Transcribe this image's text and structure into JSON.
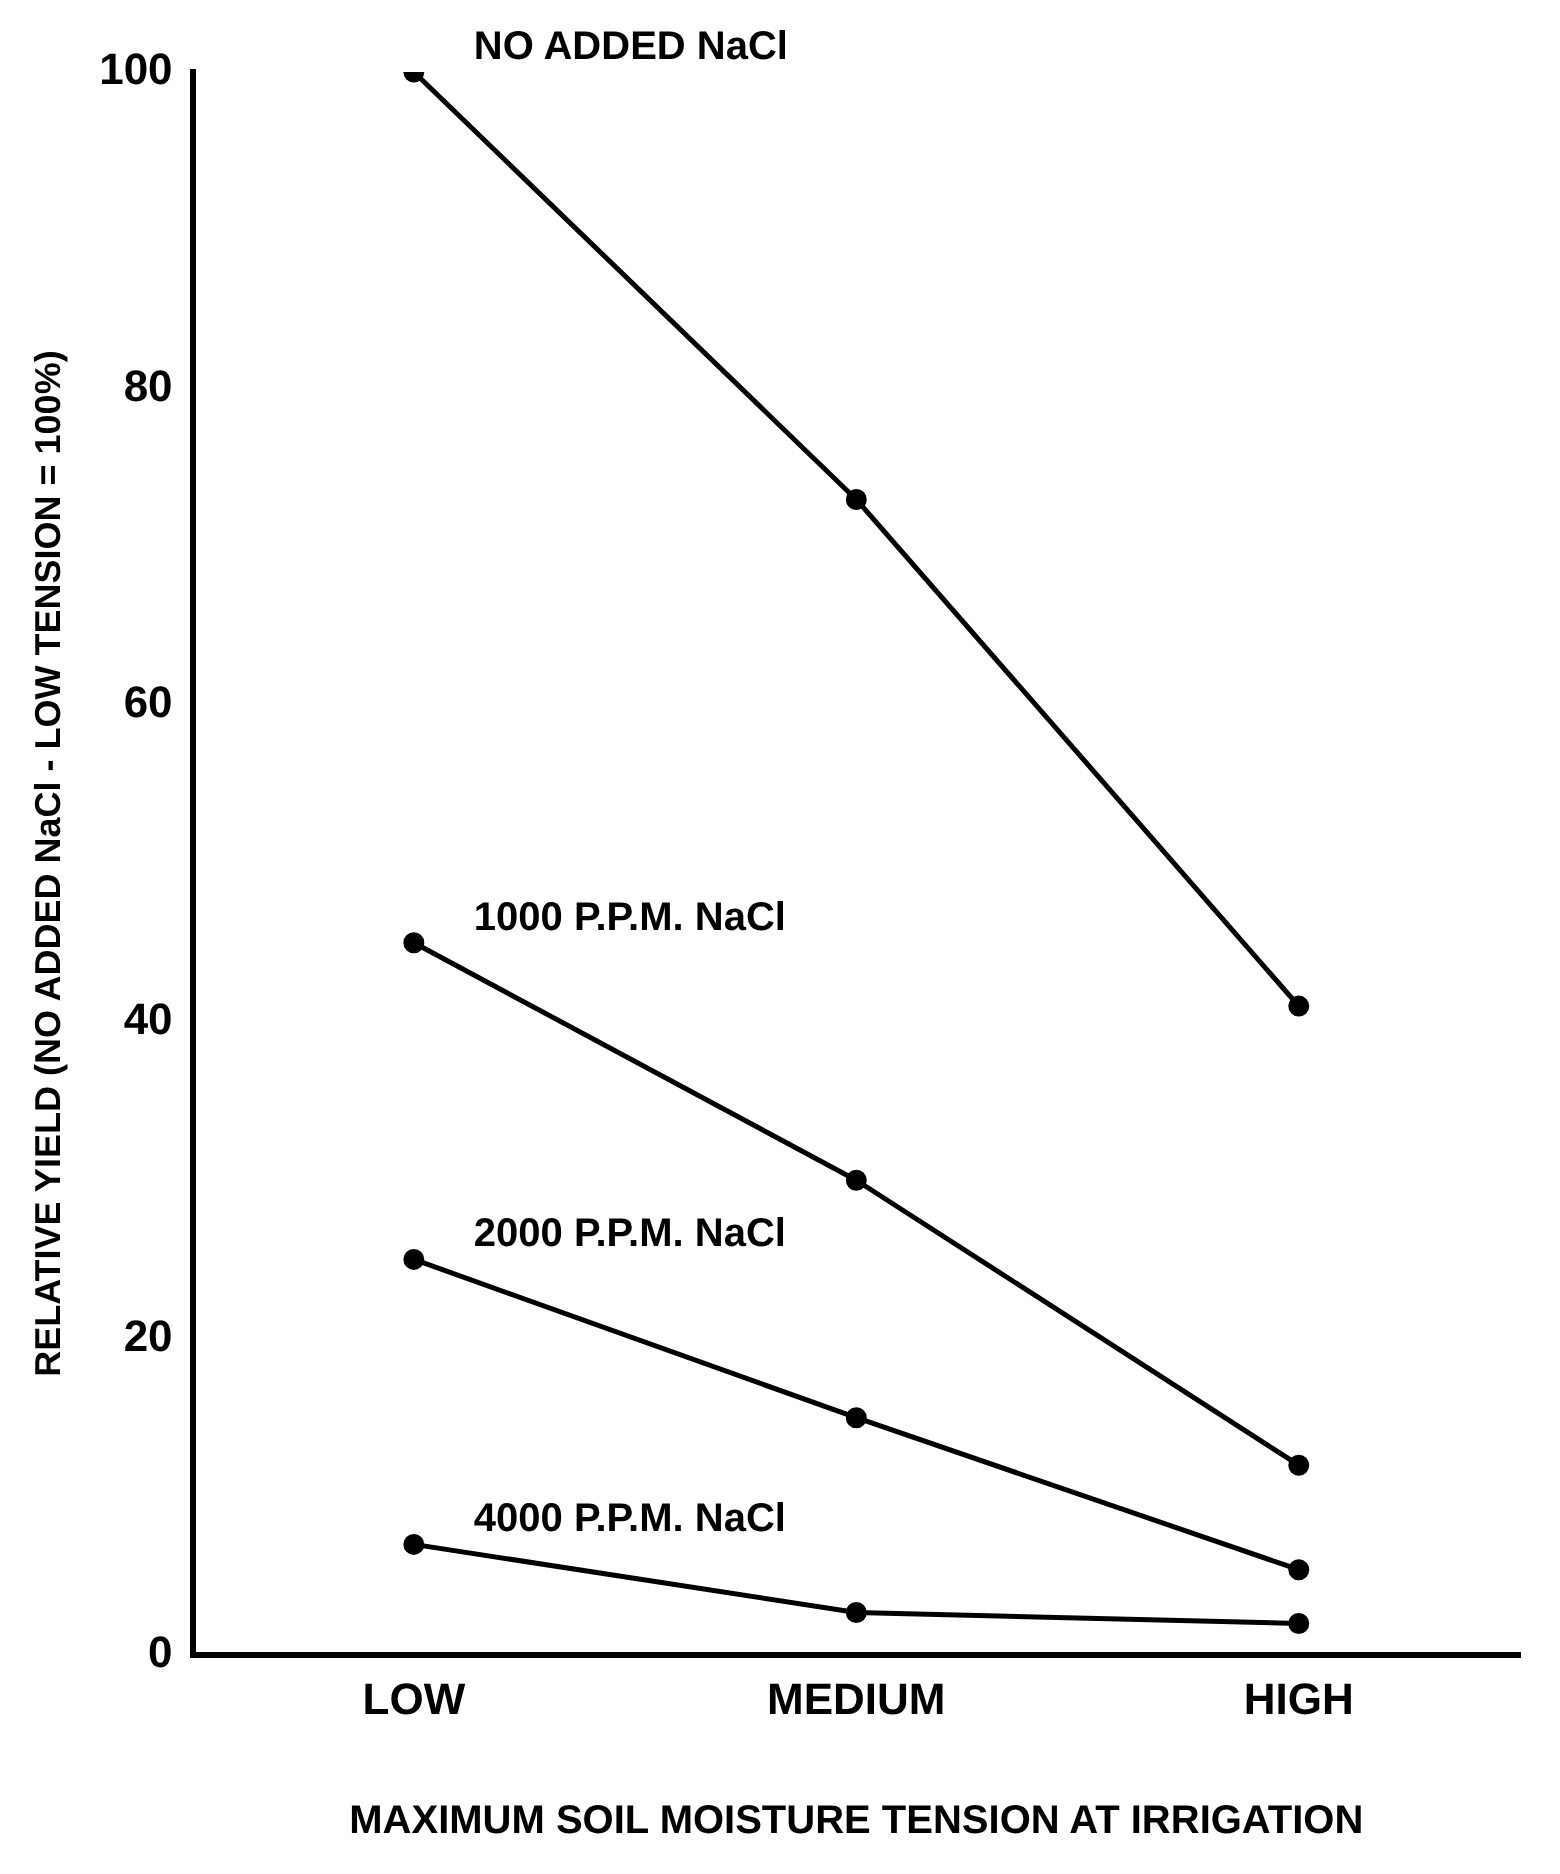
{
  "chart_data": {
    "type": "line",
    "xlabel": "MAXIMUM SOIL MOISTURE TENSION AT IRRIGATION",
    "ylabel": "RELATIVE YIELD (NO ADDED NaCl - LOW TENSION = 100%)",
    "categories": [
      "LOW",
      "MEDIUM",
      "HIGH"
    ],
    "series": [
      {
        "name": "NO ADDED NaCl",
        "color": "#000000",
        "values": [
          100,
          73,
          41
        ]
      },
      {
        "name": "1000 P.P.M. NaCl",
        "color": "#000000",
        "values": [
          45,
          30,
          12
        ]
      },
      {
        "name": "2000 P.P.M. NaCl",
        "color": "#000000",
        "values": [
          25,
          15,
          5.4
        ]
      },
      {
        "name": "4000 P.P.M. NaCl",
        "color": "#000000",
        "values": [
          7,
          2.7,
          2
        ]
      }
    ],
    "ylim": [
      0,
      100
    ],
    "yticks": [
      0,
      20,
      40,
      60,
      80,
      100
    ],
    "grid": false,
    "legend": false,
    "marker": "circle",
    "line_style": "solid"
  }
}
